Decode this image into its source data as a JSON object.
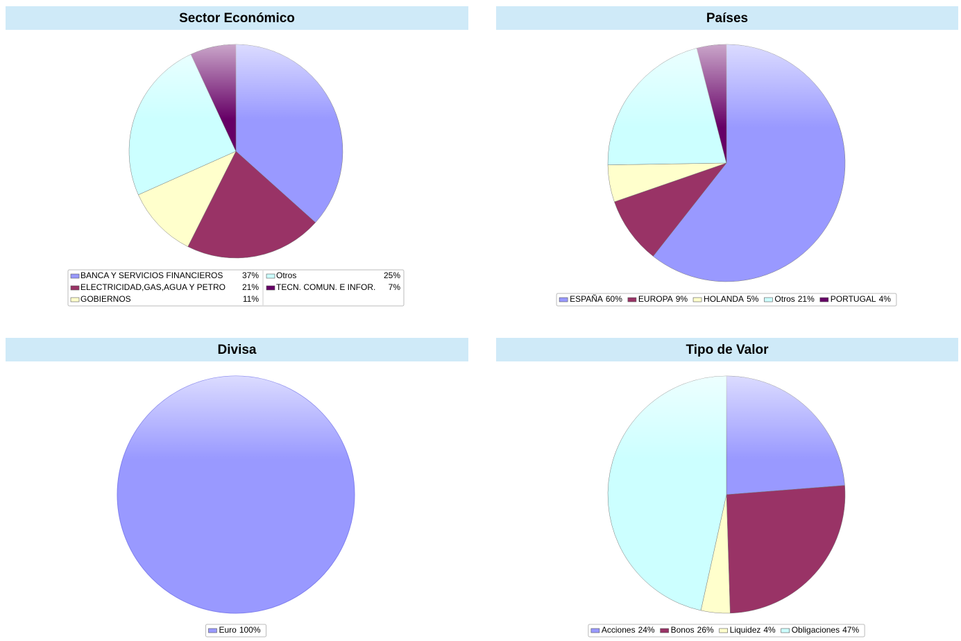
{
  "chart_data": [
    {
      "type": "pie",
      "title": "Sector Económico",
      "categories": [
        "BANCA Y SERVICIOS FINANCIEROS",
        "ELECTRICIDAD,GAS,AGUA Y PETRO",
        "GOBIERNOS",
        "Otros",
        "TECN. COMUN. E INFOR."
      ],
      "values": [
        37,
        21,
        11,
        25,
        7
      ],
      "value_labels": [
        "37%",
        "21%",
        "11%",
        "25%",
        "7%"
      ],
      "colors": [
        "#9999ff",
        "#993366",
        "#ffffcc",
        "#ccffff",
        "#660066"
      ]
    },
    {
      "type": "pie",
      "title": "Países",
      "categories": [
        "ESPAÑA",
        "EUROPA",
        "HOLANDA",
        "Otros",
        "PORTUGAL"
      ],
      "values": [
        60,
        9,
        5,
        21,
        4
      ],
      "value_labels": [
        "60%",
        "9%",
        "5%",
        "21%",
        "4%"
      ],
      "colors": [
        "#9999ff",
        "#993366",
        "#ffffcc",
        "#ccffff",
        "#660066"
      ]
    },
    {
      "type": "pie",
      "title": "Divisa",
      "categories": [
        "Euro"
      ],
      "values": [
        100
      ],
      "value_labels": [
        "100%"
      ],
      "colors": [
        "#9999ff"
      ]
    },
    {
      "type": "pie",
      "title": "Tipo de Valor",
      "categories": [
        "Acciones",
        "Bonos",
        "Liquidez",
        "Obligaciones"
      ],
      "values": [
        24,
        26,
        4,
        47
      ],
      "value_labels": [
        "24%",
        "26%",
        "4%",
        "47%"
      ],
      "colors": [
        "#9999ff",
        "#993366",
        "#ffffcc",
        "#ccffff"
      ]
    }
  ]
}
